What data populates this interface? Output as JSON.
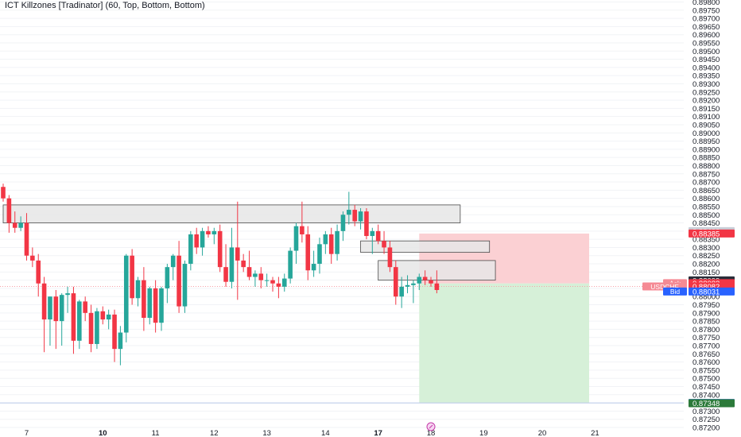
{
  "indicator": {
    "title": "ICT Killzones [Tradinator] (60, Top, Bottom, Bottom)"
  },
  "colors": {
    "up": "#26a69a",
    "down": "#f23645",
    "zone_fill": "#e6e6e6",
    "zone_stroke": "#4a4a4a",
    "risk_fill": "#fbd0d3",
    "reward_fill": "#d6f0d8",
    "grid": "#f1f3f6",
    "axis_text": "#131722",
    "last_price_line": "#f7a0a8",
    "stop_label": "#f23645",
    "target_label": "#2c7a3a",
    "bid_label": "#2962ff"
  },
  "chart_data": {
    "type": "candlestick",
    "symbol": "USDCHF",
    "ylim": [
      0.872,
      0.898
    ],
    "y_tick_step": 0.0005,
    "x_ticks": [
      {
        "label": "7",
        "bar": 4,
        "bold": false
      },
      {
        "label": "10",
        "bar": 17,
        "bold": true
      },
      {
        "label": "11",
        "bar": 26,
        "bold": false
      },
      {
        "label": "12",
        "bar": 36,
        "bold": false
      },
      {
        "label": "13",
        "bar": 45,
        "bold": false
      },
      {
        "label": "14",
        "bar": 55,
        "bold": false
      },
      {
        "label": "17",
        "bar": 64,
        "bold": true
      },
      {
        "label": "18",
        "bar": 73,
        "bold": false
      },
      {
        "label": "19",
        "bar": 82,
        "bold": false
      },
      {
        "label": "20",
        "bar": 92,
        "bold": false
      },
      {
        "label": "21",
        "bar": 101,
        "bold": false
      }
    ],
    "candles": [
      [
        0.8867,
        0.8869,
        0.8858,
        0.886
      ],
      [
        0.886,
        0.8862,
        0.8839,
        0.8845
      ],
      [
        0.8845,
        0.8852,
        0.8839,
        0.8842
      ],
      [
        0.8842,
        0.8849,
        0.884,
        0.8845
      ],
      [
        0.8845,
        0.8851,
        0.8822,
        0.8825
      ],
      [
        0.8825,
        0.883,
        0.8818,
        0.8822
      ],
      [
        0.8822,
        0.8826,
        0.88,
        0.8808
      ],
      [
        0.8808,
        0.8812,
        0.8766,
        0.8786
      ],
      [
        0.8786,
        0.88,
        0.877,
        0.88
      ],
      [
        0.88,
        0.8804,
        0.8768,
        0.8785
      ],
      [
        0.8785,
        0.8802,
        0.877,
        0.8801
      ],
      [
        0.8801,
        0.8806,
        0.879,
        0.8802
      ],
      [
        0.8802,
        0.8806,
        0.8765,
        0.8773
      ],
      [
        0.8773,
        0.8798,
        0.8768,
        0.8797
      ],
      [
        0.8797,
        0.88,
        0.8785,
        0.879
      ],
      [
        0.879,
        0.8795,
        0.8766,
        0.8771
      ],
      [
        0.8771,
        0.8793,
        0.8768,
        0.8791
      ],
      [
        0.8791,
        0.8794,
        0.8783,
        0.8786
      ],
      [
        0.8786,
        0.8792,
        0.878,
        0.8789
      ],
      [
        0.8789,
        0.8792,
        0.876,
        0.8768
      ],
      [
        0.8768,
        0.8782,
        0.8758,
        0.8778
      ],
      [
        0.8778,
        0.8826,
        0.8772,
        0.8825
      ],
      [
        0.8825,
        0.8829,
        0.8795,
        0.8799
      ],
      [
        0.8799,
        0.8812,
        0.8794,
        0.881
      ],
      [
        0.881,
        0.8818,
        0.8779,
        0.8787
      ],
      [
        0.8787,
        0.8806,
        0.8783,
        0.8805
      ],
      [
        0.8805,
        0.881,
        0.8778,
        0.8784
      ],
      [
        0.8784,
        0.8806,
        0.8779,
        0.8805
      ],
      [
        0.8805,
        0.882,
        0.8796,
        0.8818
      ],
      [
        0.8818,
        0.8826,
        0.881,
        0.8825
      ],
      [
        0.8825,
        0.8834,
        0.879,
        0.8794
      ],
      [
        0.8794,
        0.8822,
        0.879,
        0.882
      ],
      [
        0.882,
        0.884,
        0.8816,
        0.8838
      ],
      [
        0.8838,
        0.8842,
        0.8826,
        0.883
      ],
      [
        0.883,
        0.8842,
        0.8825,
        0.884
      ],
      [
        0.884,
        0.8843,
        0.8836,
        0.8838
      ],
      [
        0.8838,
        0.8842,
        0.8832,
        0.884
      ],
      [
        0.884,
        0.8844,
        0.8815,
        0.8818
      ],
      [
        0.8818,
        0.8832,
        0.8806,
        0.8809
      ],
      [
        0.8809,
        0.8842,
        0.8805,
        0.883
      ],
      [
        0.883,
        0.8858,
        0.8798,
        0.8822
      ],
      [
        0.8822,
        0.8826,
        0.8815,
        0.8818
      ],
      [
        0.8818,
        0.8828,
        0.881,
        0.8812
      ],
      [
        0.8812,
        0.8816,
        0.8806,
        0.8814
      ],
      [
        0.8814,
        0.8818,
        0.8805,
        0.881
      ],
      [
        0.881,
        0.8814,
        0.8806,
        0.881
      ],
      [
        0.881,
        0.8812,
        0.8803,
        0.8808
      ],
      [
        0.8808,
        0.8812,
        0.8799,
        0.8806
      ],
      [
        0.8806,
        0.8814,
        0.8803,
        0.8811
      ],
      [
        0.8811,
        0.883,
        0.8808,
        0.8828
      ],
      [
        0.8828,
        0.8845,
        0.882,
        0.8843
      ],
      [
        0.8843,
        0.8858,
        0.8833,
        0.8838
      ],
      [
        0.8838,
        0.8843,
        0.881,
        0.8816
      ],
      [
        0.8816,
        0.8828,
        0.8812,
        0.882
      ],
      [
        0.882,
        0.8836,
        0.8814,
        0.8832
      ],
      [
        0.8832,
        0.884,
        0.8826,
        0.8838
      ],
      [
        0.8838,
        0.8842,
        0.882,
        0.8826
      ],
      [
        0.8826,
        0.8844,
        0.8822,
        0.884
      ],
      [
        0.884,
        0.8852,
        0.8834,
        0.885
      ],
      [
        0.885,
        0.8864,
        0.8844,
        0.8853
      ],
      [
        0.8853,
        0.8856,
        0.8843,
        0.8846
      ],
      [
        0.8846,
        0.8854,
        0.8841,
        0.8852
      ],
      [
        0.8852,
        0.8854,
        0.8835,
        0.8837
      ],
      [
        0.8837,
        0.8842,
        0.8826,
        0.884
      ],
      [
        0.884,
        0.8844,
        0.8832,
        0.8834
      ],
      [
        0.8834,
        0.884,
        0.8826,
        0.883
      ],
      [
        0.883,
        0.8834,
        0.8815,
        0.8818
      ],
      [
        0.8818,
        0.8822,
        0.8795,
        0.88
      ],
      [
        0.88,
        0.8812,
        0.8793,
        0.8806
      ],
      [
        0.8806,
        0.8813,
        0.8802,
        0.8807
      ],
      [
        0.8807,
        0.881,
        0.8796,
        0.8808
      ],
      [
        0.8808,
        0.8814,
        0.8804,
        0.8812
      ],
      [
        0.8812,
        0.8816,
        0.8807,
        0.881
      ],
      [
        0.881,
        0.8812,
        0.8806,
        0.8808
      ],
      [
        0.8808,
        0.8816,
        0.8802,
        0.8804
      ]
    ],
    "zones": [
      {
        "from_bar": 0,
        "to_bar": 78,
        "top": 0.8856,
        "bottom": 0.8845
      },
      {
        "from_bar": 61,
        "to_bar": 83,
        "top": 0.8834,
        "bottom": 0.8827
      },
      {
        "from_bar": 64,
        "to_bar": 84,
        "top": 0.8822,
        "bottom": 0.881
      }
    ],
    "position": {
      "from_bar": 71,
      "to_bar": 100,
      "stop": 0.88385,
      "entry": 0.8808,
      "target": 0.8735
    },
    "price_labels": [
      {
        "text": "0.88400",
        "price": 0.884,
        "role": "grey"
      },
      {
        "text": "0.88385",
        "price": 0.88385,
        "role": "stop"
      },
      {
        "text": "0.88099",
        "price": 0.88099,
        "role": "dark"
      },
      {
        "text": "Ask",
        "price": 0.88082,
        "role": "ask_tag"
      },
      {
        "text": "0.88082",
        "price": 0.88082,
        "role": "ask"
      },
      {
        "text": "USDCHF",
        "price": 0.88062,
        "role": "symbol_tag"
      },
      {
        "text": "0.88082",
        "price": 0.88062,
        "role": "last"
      },
      {
        "text": "Bid",
        "price": 0.88031,
        "role": "bid_tag"
      },
      {
        "text": "0.88031",
        "price": 0.88031,
        "role": "bid"
      },
      {
        "text": "0.87350",
        "price": 0.8735,
        "role": "target_top"
      },
      {
        "text": "0.87348",
        "price": 0.87348,
        "role": "target"
      }
    ]
  }
}
